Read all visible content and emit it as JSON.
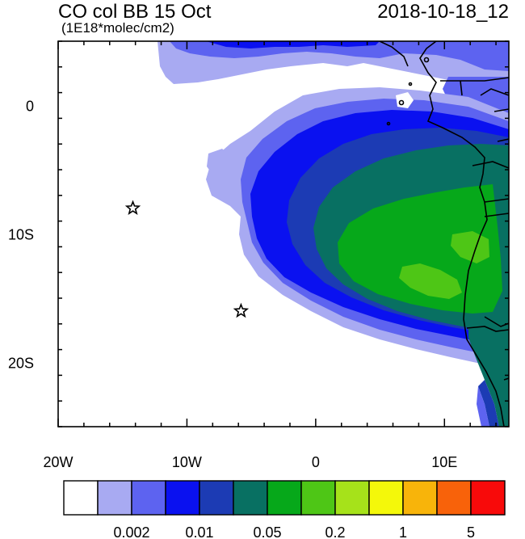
{
  "header": {
    "title": "CO col BB 15 Oct",
    "units": "(1E18*molec/cm2)",
    "datetime": "2018-10-18_12"
  },
  "map": {
    "lon_range": [
      -20,
      15
    ],
    "lat_range": [
      -25,
      5
    ],
    "x_ticks": [
      {
        "lon": -20,
        "label": "20W"
      },
      {
        "lon": -10,
        "label": "10W"
      },
      {
        "lon": 0,
        "label": "0"
      },
      {
        "lon": 10,
        "label": "10E"
      }
    ],
    "y_ticks": [
      {
        "lat": 0,
        "label": "0"
      },
      {
        "lat": -10,
        "label": "10S"
      },
      {
        "lat": -20,
        "label": "20S"
      }
    ],
    "markers": [
      {
        "name": "star-marker-st-helena",
        "lon": -14.2,
        "lat": -8.0
      },
      {
        "name": "star-marker-ascension",
        "lon": -5.8,
        "lat": -16.0
      }
    ]
  },
  "colorbar": {
    "colors": [
      "#ffffff",
      "#a8aaf2",
      "#5d63f0",
      "#0a11f0",
      "#1c3bb4",
      "#087062",
      "#06a81a",
      "#4ec616",
      "#a6e21a",
      "#f4f80a",
      "#f8b40a",
      "#f8620a",
      "#f80a0a"
    ],
    "labels": [
      "0.002",
      "0.01",
      "0.05",
      "0.2",
      "1",
      "5"
    ]
  }
}
